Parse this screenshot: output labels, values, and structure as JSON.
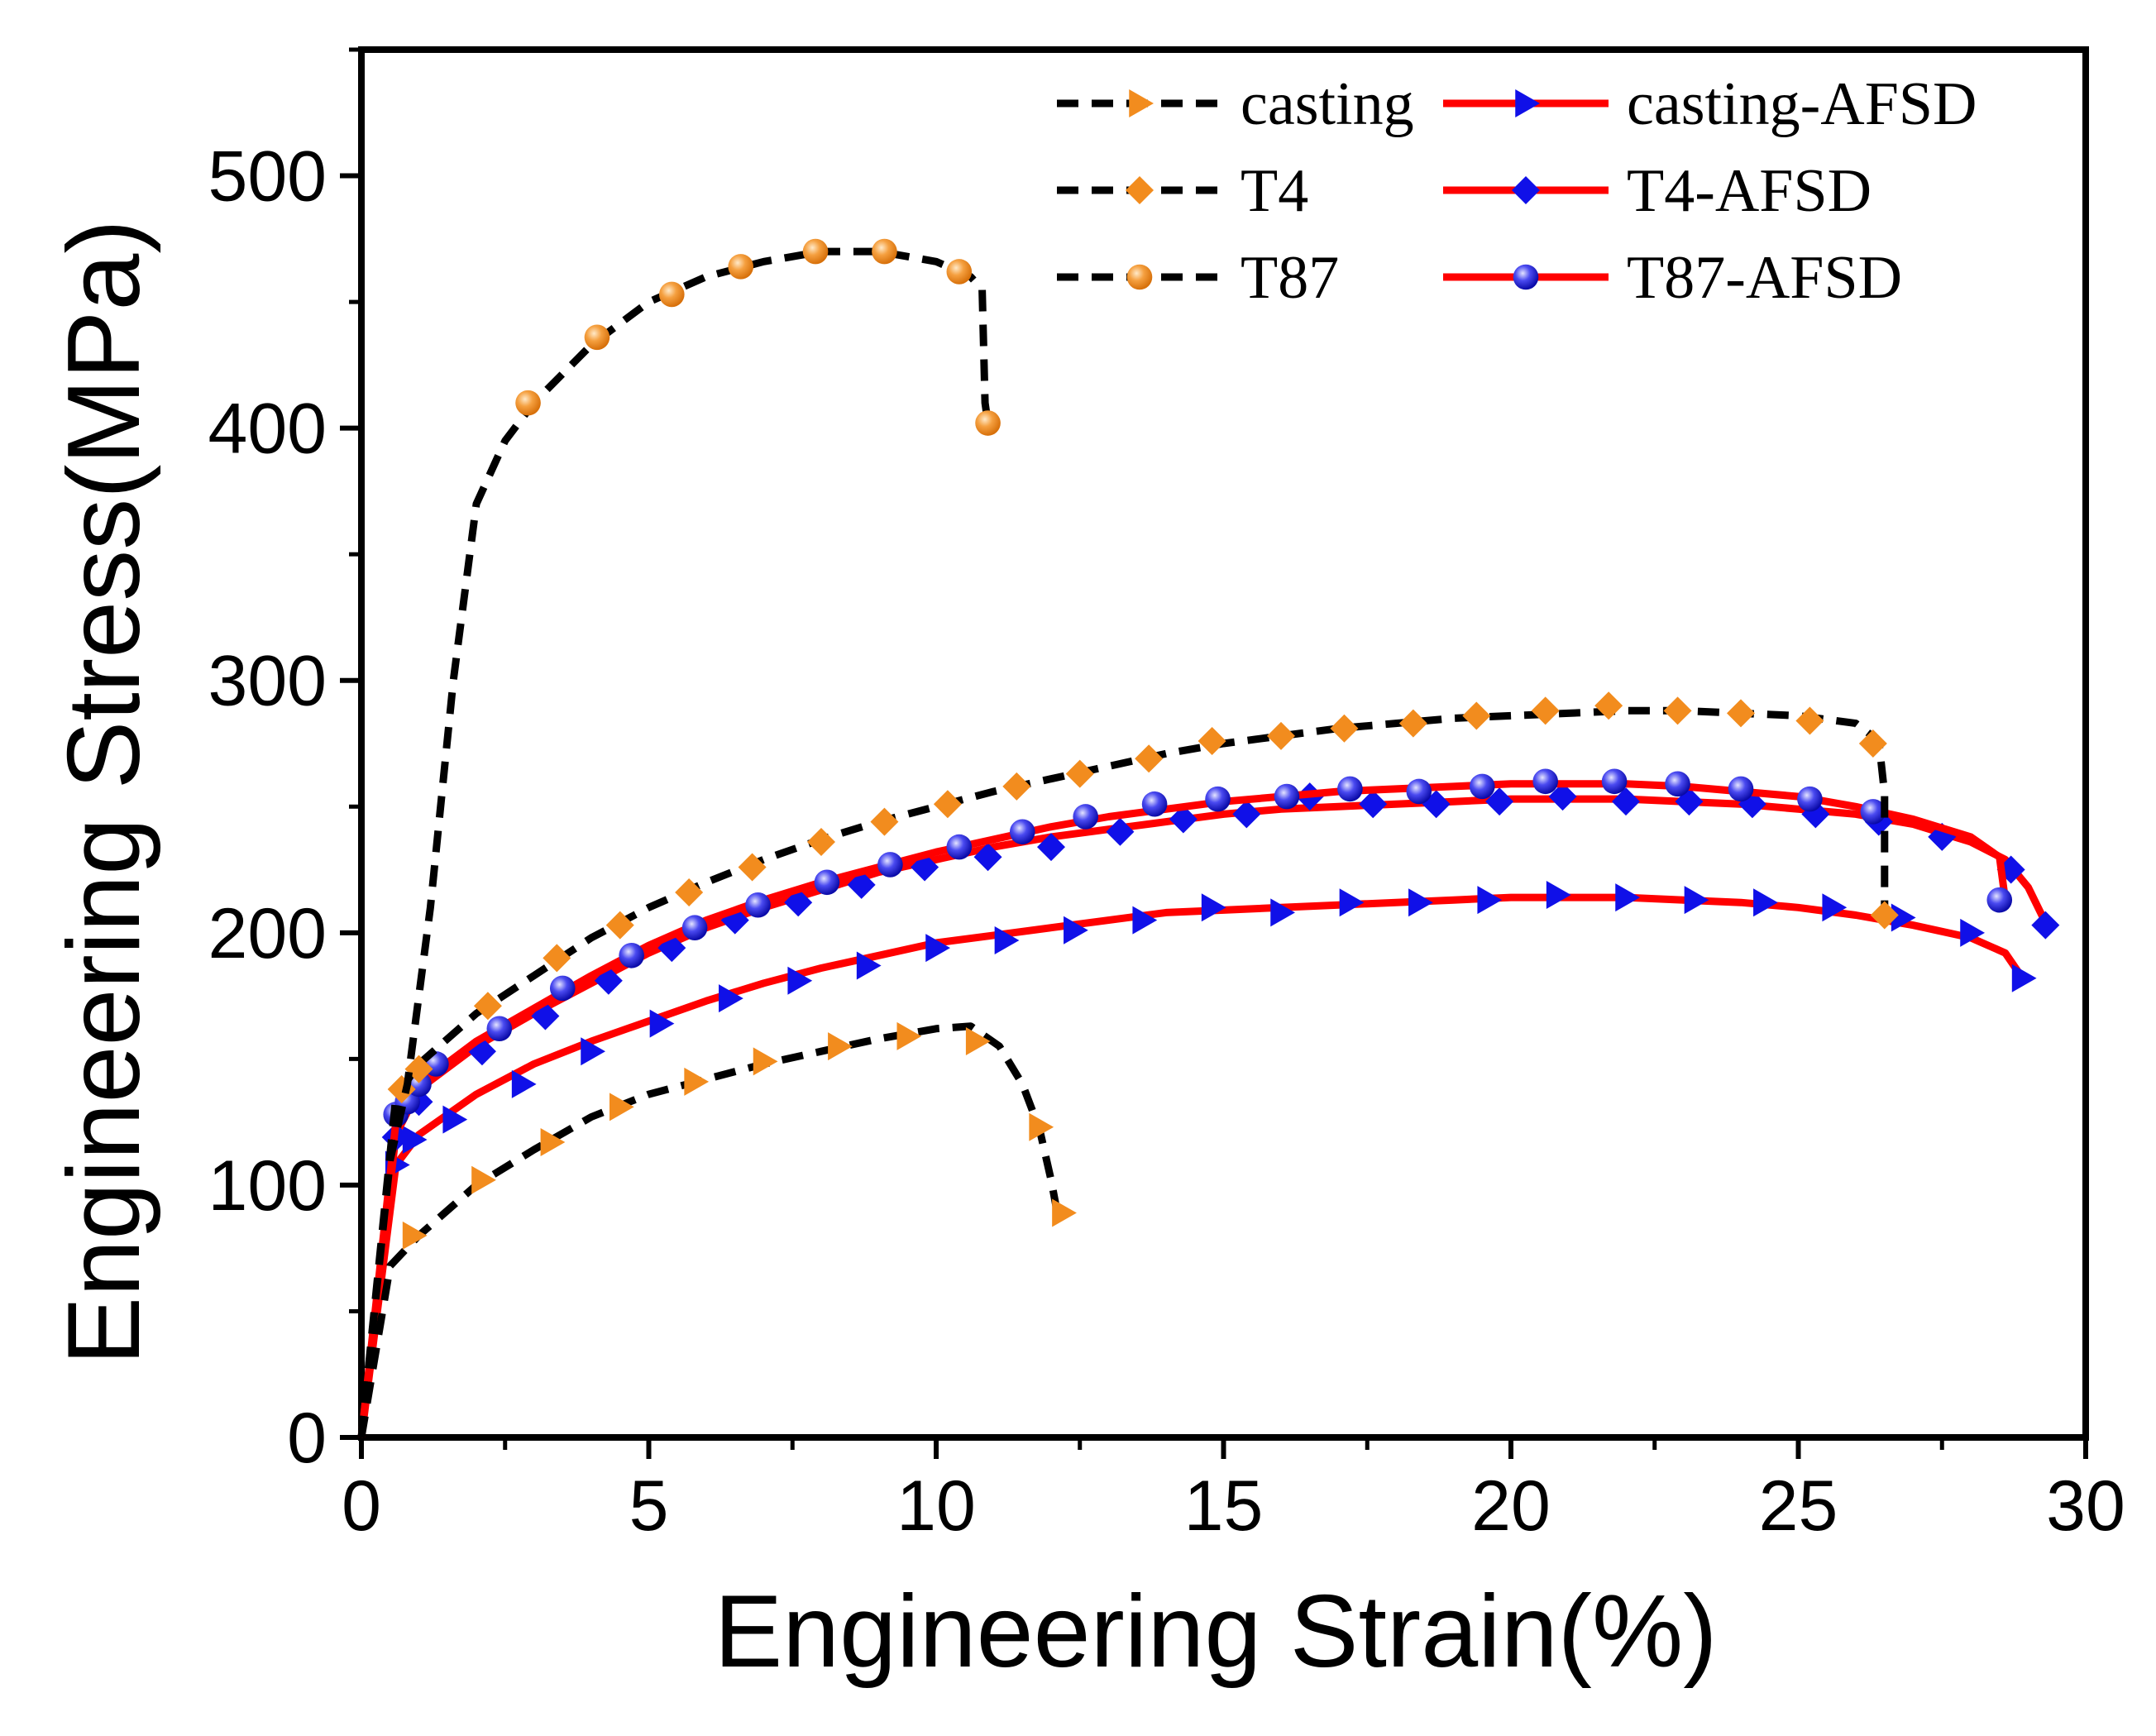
{
  "chart_data": {
    "type": "line",
    "title": "",
    "xlabel": "Engineering Strain(%)",
    "ylabel": "Engineering Stress(MPa)",
    "xlim": [
      0,
      30
    ],
    "ylim": [
      0,
      550
    ],
    "x_ticks": [
      0,
      5,
      10,
      15,
      20,
      25,
      30
    ],
    "y_ticks": [
      0,
      100,
      200,
      300,
      400,
      500
    ],
    "grid": false,
    "legend_position": "top-right",
    "series": [
      {
        "name": "casting",
        "line_style": "dashed",
        "line_color": "#000000",
        "marker": "triangle-right",
        "marker_color": "#F28C1E",
        "curve": [
          [
            0,
            0
          ],
          [
            0.5,
            68
          ],
          [
            1,
            80
          ],
          [
            2,
            100
          ],
          [
            3,
            114
          ],
          [
            4,
            127
          ],
          [
            5,
            136
          ],
          [
            6,
            142
          ],
          [
            7,
            148
          ],
          [
            8,
            153
          ],
          [
            9,
            158
          ],
          [
            10,
            162
          ],
          [
            10.6,
            163
          ],
          [
            11.1,
            155
          ],
          [
            11.5,
            140
          ],
          [
            11.8,
            122
          ],
          [
            12,
            102
          ],
          [
            12.1,
            90
          ]
        ],
        "markers": [
          [
            0.9,
            80
          ],
          [
            2.1,
            102
          ],
          [
            3.3,
            117
          ],
          [
            4.5,
            131
          ],
          [
            5.8,
            141
          ],
          [
            7.0,
            149
          ],
          [
            8.3,
            155
          ],
          [
            9.5,
            159
          ],
          [
            10.7,
            157
          ],
          [
            11.8,
            123
          ],
          [
            12.2,
            89
          ]
        ]
      },
      {
        "name": "T4",
        "line_style": "dashed",
        "line_color": "#000000",
        "marker": "diamond",
        "marker_color": "#F28C1E",
        "curve": [
          [
            0,
            0
          ],
          [
            0.6,
            135
          ],
          [
            1,
            148
          ],
          [
            2,
            168
          ],
          [
            3,
            183
          ],
          [
            4,
            198
          ],
          [
            5,
            210
          ],
          [
            6,
            220
          ],
          [
            7,
            229
          ],
          [
            8,
            237
          ],
          [
            9,
            244
          ],
          [
            10,
            250
          ],
          [
            11,
            256
          ],
          [
            12,
            261
          ],
          [
            13,
            266
          ],
          [
            14,
            271
          ],
          [
            15,
            275
          ],
          [
            16,
            278
          ],
          [
            17,
            281
          ],
          [
            18,
            283
          ],
          [
            19,
            285
          ],
          [
            20,
            286
          ],
          [
            21,
            287
          ],
          [
            22,
            288
          ],
          [
            23,
            288
          ],
          [
            24,
            287
          ],
          [
            25,
            286
          ],
          [
            26,
            283
          ],
          [
            26.4,
            276
          ],
          [
            26.5,
            255
          ],
          [
            26.5,
            208
          ]
        ],
        "markers": [
          [
            0.7,
            138
          ],
          [
            1.0,
            146
          ],
          [
            2.2,
            171
          ],
          [
            3.4,
            190
          ],
          [
            4.5,
            203
          ],
          [
            5.7,
            216
          ],
          [
            6.8,
            226
          ],
          [
            8.0,
            236
          ],
          [
            9.1,
            244
          ],
          [
            10.2,
            251
          ],
          [
            11.4,
            258
          ],
          [
            12.5,
            263
          ],
          [
            13.7,
            269
          ],
          [
            14.8,
            276
          ],
          [
            16.0,
            278
          ],
          [
            17.1,
            281
          ],
          [
            18.3,
            283
          ],
          [
            19.4,
            286
          ],
          [
            20.6,
            288
          ],
          [
            21.7,
            290
          ],
          [
            22.9,
            288
          ],
          [
            24.0,
            287
          ],
          [
            25.2,
            284
          ],
          [
            26.3,
            275
          ],
          [
            26.5,
            207
          ]
        ]
      },
      {
        "name": "T87",
        "line_style": "dashed",
        "line_color": "#000000",
        "marker": "circle",
        "marker_color": "#F28C1E",
        "curve": [
          [
            0,
            0
          ],
          [
            0.5,
            110
          ],
          [
            0.8,
            140
          ],
          [
            1.2,
            210
          ],
          [
            1.6,
            300
          ],
          [
            2,
            370
          ],
          [
            2.5,
            395
          ],
          [
            3,
            410
          ],
          [
            4,
            433
          ],
          [
            5,
            450
          ],
          [
            6,
            460
          ],
          [
            7,
            466
          ],
          [
            8,
            470
          ],
          [
            9,
            470
          ],
          [
            10,
            466
          ],
          [
            10.6,
            460
          ],
          [
            10.8,
            455
          ],
          [
            10.85,
            410
          ],
          [
            10.9,
            402
          ]
        ],
        "markers": [
          [
            2.9,
            410
          ],
          [
            4.1,
            436
          ],
          [
            5.4,
            453
          ],
          [
            6.6,
            464
          ],
          [
            7.9,
            470
          ],
          [
            9.1,
            470
          ],
          [
            10.4,
            462
          ],
          [
            10.9,
            402
          ]
        ]
      },
      {
        "name": "casting-AFSD",
        "line_style": "solid",
        "line_color": "#FF0000",
        "marker": "triangle-right",
        "marker_color": "#1010E8",
        "curve": [
          [
            0,
            0
          ],
          [
            0.6,
            108
          ],
          [
            1,
            120
          ],
          [
            2,
            136
          ],
          [
            3,
            148
          ],
          [
            4,
            157
          ],
          [
            5,
            165
          ],
          [
            6,
            173
          ],
          [
            7,
            180
          ],
          [
            8,
            186
          ],
          [
            9,
            191
          ],
          [
            10,
            196
          ],
          [
            11,
            199
          ],
          [
            12,
            202
          ],
          [
            13,
            205
          ],
          [
            14,
            208
          ],
          [
            15,
            209
          ],
          [
            16,
            210
          ],
          [
            17,
            211
          ],
          [
            18,
            212
          ],
          [
            19,
            213
          ],
          [
            20,
            214
          ],
          [
            21,
            214
          ],
          [
            22,
            214
          ],
          [
            23,
            213
          ],
          [
            24,
            212
          ],
          [
            25,
            210
          ],
          [
            26,
            207
          ],
          [
            27,
            203
          ],
          [
            28,
            198
          ],
          [
            28.6,
            192
          ],
          [
            28.9,
            182
          ]
        ],
        "markers": [
          [
            0.6,
            108
          ],
          [
            0.9,
            118
          ],
          [
            1.6,
            126
          ],
          [
            2.8,
            140
          ],
          [
            4.0,
            153
          ],
          [
            5.2,
            164
          ],
          [
            6.4,
            174
          ],
          [
            7.6,
            181
          ],
          [
            8.8,
            187
          ],
          [
            10.0,
            194
          ],
          [
            11.2,
            197
          ],
          [
            12.4,
            201
          ],
          [
            13.6,
            205
          ],
          [
            14.8,
            210
          ],
          [
            16.0,
            208
          ],
          [
            17.2,
            212
          ],
          [
            18.4,
            212
          ],
          [
            19.6,
            213
          ],
          [
            20.8,
            215
          ],
          [
            22.0,
            214
          ],
          [
            23.2,
            213
          ],
          [
            24.4,
            212
          ],
          [
            25.6,
            210
          ],
          [
            26.8,
            206
          ],
          [
            28.0,
            200
          ],
          [
            28.9,
            182
          ]
        ]
      },
      {
        "name": "T4-AFSD",
        "line_style": "solid",
        "line_color": "#FF0000",
        "marker": "diamond",
        "marker_color": "#1010E8",
        "curve": [
          [
            0,
            0
          ],
          [
            0.6,
            120
          ],
          [
            1,
            138
          ],
          [
            2,
            155
          ],
          [
            3,
            168
          ],
          [
            4,
            180
          ],
          [
            5,
            192
          ],
          [
            6,
            202
          ],
          [
            7,
            210
          ],
          [
            8,
            217
          ],
          [
            9,
            224
          ],
          [
            10,
            229
          ],
          [
            11,
            234
          ],
          [
            12,
            238
          ],
          [
            13,
            241
          ],
          [
            14,
            244
          ],
          [
            15,
            247
          ],
          [
            16,
            249
          ],
          [
            17,
            250
          ],
          [
            18,
            251
          ],
          [
            19,
            252
          ],
          [
            20,
            253
          ],
          [
            21,
            253
          ],
          [
            22,
            253
          ],
          [
            23,
            252
          ],
          [
            24,
            251
          ],
          [
            25,
            249
          ],
          [
            26,
            247
          ],
          [
            27,
            243
          ],
          [
            28,
            236
          ],
          [
            28.6,
            229
          ],
          [
            29,
            218
          ],
          [
            29.3,
            204
          ]
        ],
        "markers": [
          [
            0.6,
            119
          ],
          [
            1.0,
            133
          ],
          [
            2.1,
            153
          ],
          [
            3.2,
            167
          ],
          [
            4.3,
            181
          ],
          [
            5.4,
            194
          ],
          [
            6.5,
            205
          ],
          [
            7.6,
            212
          ],
          [
            8.7,
            219
          ],
          [
            9.8,
            226
          ],
          [
            10.9,
            230
          ],
          [
            12.0,
            234
          ],
          [
            13.2,
            240
          ],
          [
            14.3,
            245
          ],
          [
            15.4,
            247
          ],
          [
            16.5,
            254
          ],
          [
            17.6,
            251
          ],
          [
            18.7,
            251
          ],
          [
            19.8,
            252
          ],
          [
            20.9,
            254
          ],
          [
            22.0,
            252
          ],
          [
            23.1,
            252
          ],
          [
            24.2,
            251
          ],
          [
            25.3,
            247
          ],
          [
            26.4,
            244
          ],
          [
            27.5,
            238
          ],
          [
            28.7,
            225
          ],
          [
            29.3,
            203
          ]
        ]
      },
      {
        "name": "T87-AFSD",
        "line_style": "solid",
        "line_color": "#FF0000",
        "marker": "circle",
        "marker_color": "#1010E8",
        "curve": [
          [
            0,
            0
          ],
          [
            0.6,
            125
          ],
          [
            1,
            140
          ],
          [
            2,
            157
          ],
          [
            3,
            170
          ],
          [
            4,
            183
          ],
          [
            5,
            195
          ],
          [
            6,
            205
          ],
          [
            7,
            213
          ],
          [
            8,
            220
          ],
          [
            9,
            226
          ],
          [
            10,
            232
          ],
          [
            11,
            237
          ],
          [
            12,
            242
          ],
          [
            13,
            246
          ],
          [
            14,
            249
          ],
          [
            15,
            252
          ],
          [
            16,
            254
          ],
          [
            17,
            256
          ],
          [
            18,
            257
          ],
          [
            19,
            258
          ],
          [
            20,
            259
          ],
          [
            21,
            259
          ],
          [
            22,
            259
          ],
          [
            23,
            258
          ],
          [
            24,
            256
          ],
          [
            25,
            254
          ],
          [
            26,
            250
          ],
          [
            27,
            245
          ],
          [
            28,
            238
          ],
          [
            28.5,
            230
          ],
          [
            28.6,
            213
          ]
        ],
        "markers": [
          [
            0.6,
            128
          ],
          [
            0.8,
            133
          ],
          [
            1.0,
            140
          ],
          [
            1.3,
            148
          ],
          [
            2.4,
            162
          ],
          [
            3.5,
            178
          ],
          [
            4.7,
            191
          ],
          [
            5.8,
            202
          ],
          [
            6.9,
            211
          ],
          [
            8.1,
            220
          ],
          [
            9.2,
            227
          ],
          [
            10.4,
            234
          ],
          [
            11.5,
            240
          ],
          [
            12.6,
            246
          ],
          [
            13.8,
            251
          ],
          [
            14.9,
            253
          ],
          [
            16.1,
            254
          ],
          [
            17.2,
            257
          ],
          [
            18.4,
            256
          ],
          [
            19.5,
            258
          ],
          [
            20.6,
            260
          ],
          [
            21.8,
            260
          ],
          [
            22.9,
            259
          ],
          [
            24.0,
            257
          ],
          [
            25.2,
            253
          ],
          [
            26.3,
            248
          ],
          [
            28.5,
            213
          ]
        ]
      }
    ]
  }
}
